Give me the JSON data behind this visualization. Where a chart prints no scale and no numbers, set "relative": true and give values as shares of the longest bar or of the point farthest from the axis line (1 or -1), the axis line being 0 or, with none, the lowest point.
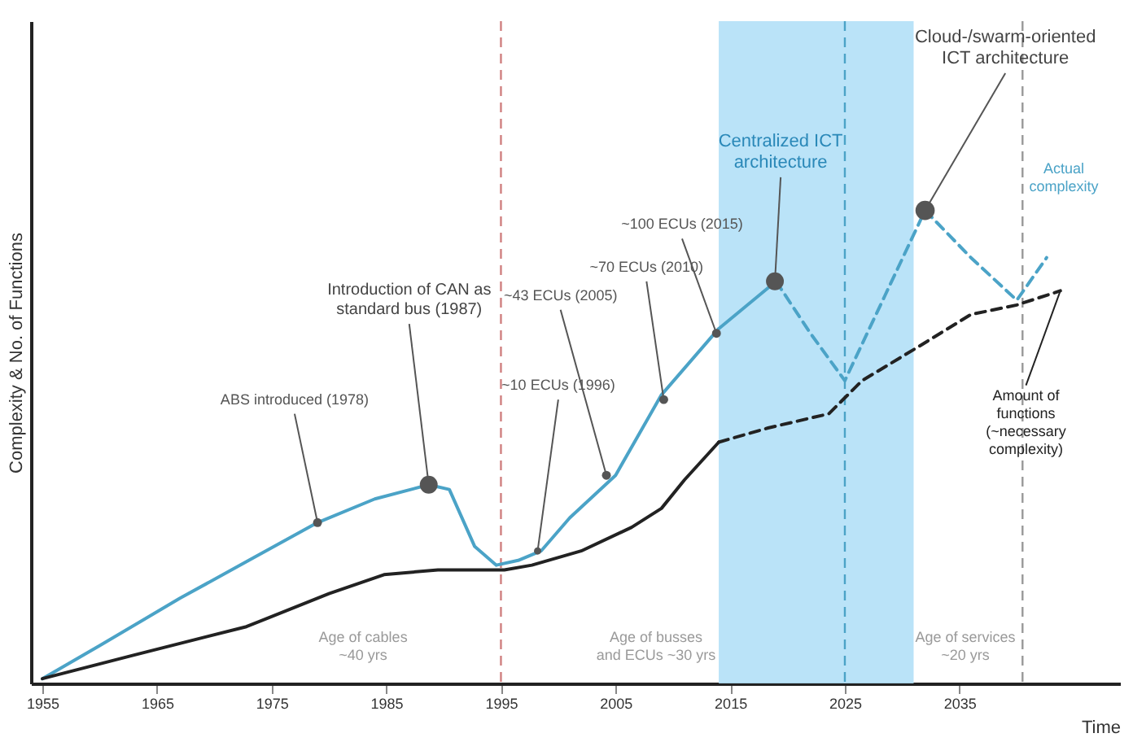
{
  "chart_data": {
    "type": "line",
    "relative": true,
    "xlabel": "Time",
    "ylabel": "Complexity & No. of Functions",
    "xlim": [
      1954,
      2049
    ],
    "xticks": [
      1955,
      1965,
      1975,
      1985,
      1995,
      2005,
      2015,
      2025,
      2035
    ],
    "series": [
      {
        "color": "#4ba3c7",
        "line_style": "solid",
        "x": [
          1955,
          1960,
          1967,
          1973,
          1979,
          1984,
          1988.7,
          1990.5,
          1992.7,
          1994.6,
          1996.5,
          1998.5,
          2001,
          2005,
          2009,
          2014,
          2019
        ],
        "values": [
          0.01,
          0.08,
          0.18,
          0.26,
          0.34,
          0.39,
          0.42,
          0.41,
          0.29,
          0.25,
          0.26,
          0.28,
          0.35,
          0.44,
          0.61,
          0.75,
          0.85
        ]
      },
      {
        "name": "Actual complexity",
        "color": "#4ba3c7",
        "line_style": "dashed",
        "x": [
          2019,
          2022,
          2025,
          2028.5,
          2032,
          2036,
          2040,
          2042.6
        ],
        "values": [
          0.85,
          0.74,
          0.64,
          0.82,
          1.0,
          0.9,
          0.81,
          0.9
        ]
      },
      {
        "color": "#222222",
        "line_style": "solid",
        "x": [
          1955,
          1963,
          1972.8,
          1980,
          1984.8,
          1989.5,
          1995.3,
          1997.7,
          2002,
          2006.4,
          2009,
          2011,
          2014
        ],
        "values": [
          0.01,
          0.06,
          0.12,
          0.19,
          0.23,
          0.24,
          0.24,
          0.25,
          0.28,
          0.33,
          0.37,
          0.43,
          0.51
        ]
      },
      {
        "name": "Amount of functions (~necessary complexity)",
        "color": "#222222",
        "line_style": "dashed",
        "x": [
          2014,
          2018.3,
          2023.6,
          2026.5,
          2031.3,
          2036,
          2040,
          2043.8
        ],
        "values": [
          0.51,
          0.54,
          0.57,
          0.64,
          0.71,
          0.78,
          0.8,
          0.83
        ]
      }
    ],
    "bands": [
      {
        "axis": "x",
        "from": 2014,
        "to": 2031,
        "color": "#b3e0f7"
      }
    ],
    "ref_lines": [
      {
        "axis": "x",
        "value": 1995,
        "color": "#d08080",
        "line_style": "dashed"
      },
      {
        "axis": "x",
        "value": 2025,
        "color": "#4ba3c7",
        "line_style": "dashed"
      },
      {
        "axis": "x",
        "value": 2040.5,
        "color": "#999999",
        "line_style": "dashed"
      }
    ],
    "annotations": [
      {
        "text": "ABS introduced (1978)",
        "x": 1979,
        "y": 0.34
      },
      {
        "text": "Introduction of CAN as standard bus (1987)",
        "x": 1988.7,
        "y": 0.42
      },
      {
        "text": "~10 ECUs (1996)",
        "x": 1998.2,
        "y": 0.28
      },
      {
        "text": "~43 ECUs (2005)",
        "x": 2004.2,
        "y": 0.44
      },
      {
        "text": "~70 ECUs (2010)",
        "x": 2009.2,
        "y": 0.6
      },
      {
        "text": "~100 ECUs (2015)",
        "x": 2013.8,
        "y": 0.74
      },
      {
        "text": "Centralized ICT architecture",
        "x": 2018.9,
        "y": 0.85
      },
      {
        "text": "Cloud-/swarm-oriented ICT architecture",
        "x": 2032,
        "y": 1.0
      },
      "Age of cables ~40 yrs",
      "Age of busses and ECUs ~30 yrs",
      "Age of services ~20 yrs"
    ]
  }
}
